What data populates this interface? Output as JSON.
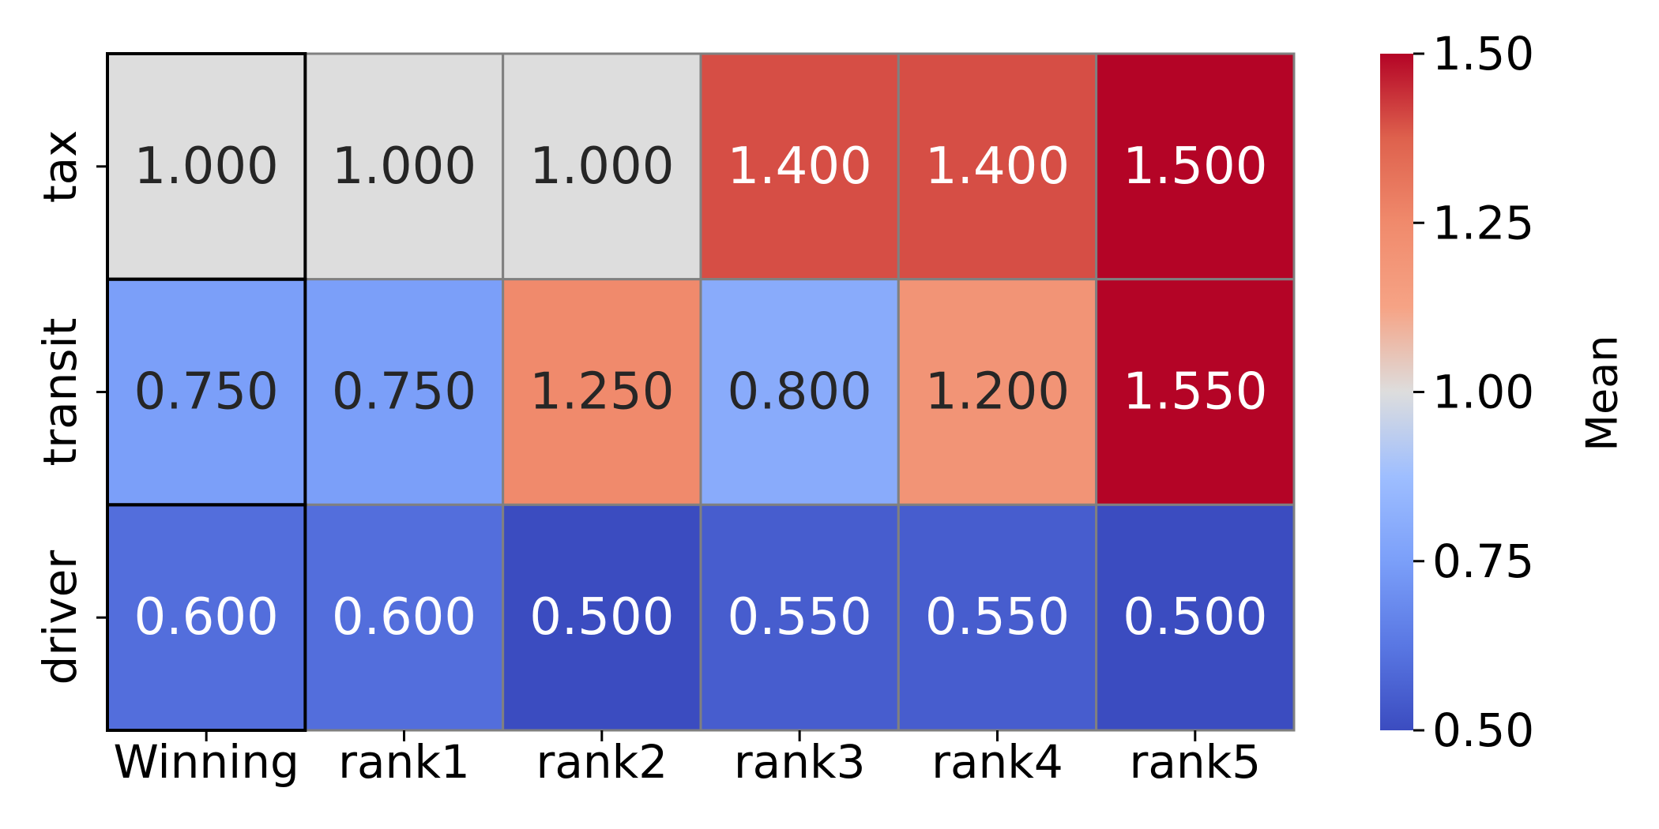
{
  "chart_data": {
    "type": "heatmap",
    "title": "",
    "xlabel": "",
    "ylabel": "",
    "x_categories": [
      "Winning",
      "rank1",
      "rank2",
      "rank3",
      "rank4",
      "rank5"
    ],
    "y_categories": [
      "tax",
      "transit",
      "driver"
    ],
    "values": [
      [
        1.0,
        1.0,
        1.0,
        1.4,
        1.4,
        1.5
      ],
      [
        0.75,
        0.75,
        1.25,
        0.8,
        1.2,
        1.55
      ],
      [
        0.6,
        0.6,
        0.5,
        0.55,
        0.55,
        0.5
      ]
    ],
    "value_labels": [
      [
        "1.000",
        "1.000",
        "1.000",
        "1.400",
        "1.400",
        "1.500"
      ],
      [
        "0.750",
        "0.750",
        "1.250",
        "0.800",
        "1.200",
        "1.550"
      ],
      [
        "0.600",
        "0.600",
        "0.500",
        "0.550",
        "0.550",
        "0.500"
      ]
    ],
    "highlighted_column": "Winning",
    "colormap": "coolwarm",
    "colorbar": {
      "label": "Mean",
      "range": [
        0.5,
        1.5
      ],
      "ticks": [
        0.5,
        0.75,
        1.0,
        1.25,
        1.5
      ],
      "tick_labels": [
        "0.50",
        "0.75",
        "1.00",
        "1.25",
        "1.50"
      ]
    },
    "colors": {
      "cell_border": "#808080",
      "highlight_border": "#000000",
      "dark_text": "#262626",
      "light_text": "#ffffff"
    }
  }
}
